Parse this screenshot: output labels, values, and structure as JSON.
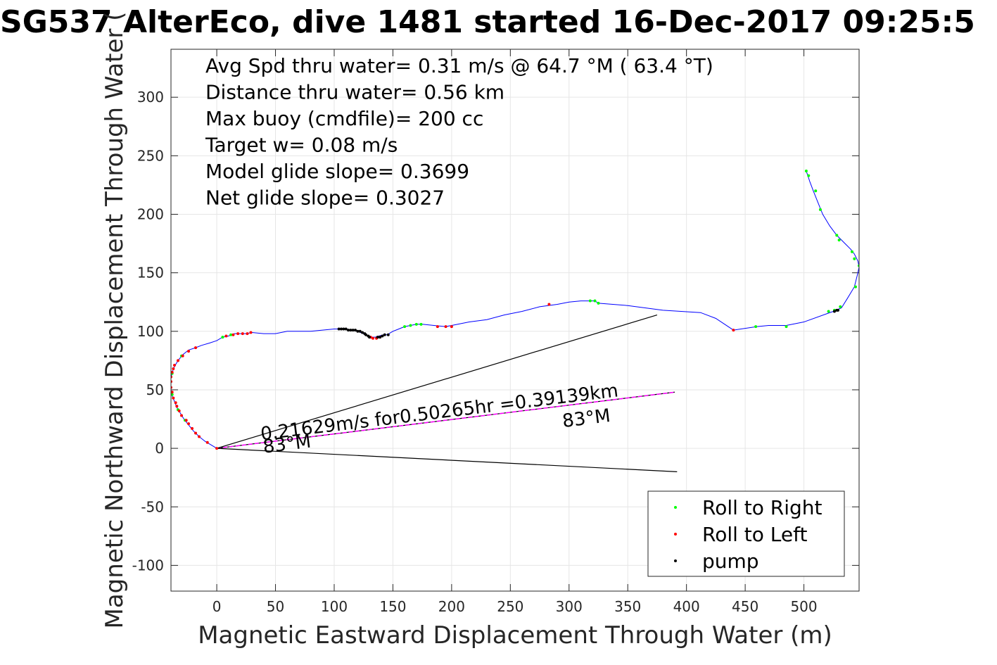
{
  "chart_data": {
    "type": "scatter",
    "title": "SG537 AlterEco, dive 1481 started 16-Dec-2017 09:25:5",
    "xlabel": "Magnetic Eastward Displacement Through Water (m)",
    "ylabel": "Magnetic Northward Displacement Through Water (",
    "xlim": [
      -39,
      547
    ],
    "ylim": [
      -122,
      341
    ],
    "xticks": [
      0,
      50,
      100,
      150,
      200,
      250,
      300,
      350,
      400,
      450,
      500
    ],
    "yticks": [
      -100,
      -50,
      0,
      50,
      100,
      150,
      200,
      250,
      300
    ],
    "grid": true,
    "legend_position": "bottom-right",
    "annotation_lines": [
      "Avg Spd thru water=  0.31 m/s @  64.7 °M ( 63.4 °T)",
      "Distance thru water=  0.56 km",
      "Max buoy (cmdfile)= 200 cc",
      "Target w= 0.08 m/s",
      "Model glide slope= 0.3699",
      "Net glide slope= 0.3027"
    ],
    "current_label": "0.21629m/s for0.50265hr =0.39139km",
    "heading_labels": [
      {
        "text": "83°M",
        "x": 40,
        "y": -4
      },
      {
        "text": "83°M",
        "x": 295,
        "y": 18
      }
    ],
    "series": [
      {
        "name": "track",
        "style": "line",
        "color": "#0000ff",
        "points": [
          [
            0,
            0
          ],
          [
            -5,
            3
          ],
          [
            -10,
            6
          ],
          [
            -15,
            10
          ],
          [
            -20,
            15
          ],
          [
            -24,
            20
          ],
          [
            -28,
            25
          ],
          [
            -31,
            30
          ],
          [
            -34,
            35
          ],
          [
            -36,
            40
          ],
          [
            -38,
            45
          ],
          [
            -39,
            50
          ],
          [
            -39,
            55
          ],
          [
            -39,
            60
          ],
          [
            -38,
            65
          ],
          [
            -36,
            70
          ],
          [
            -33,
            75
          ],
          [
            -29,
            80
          ],
          [
            -24,
            84
          ],
          [
            -18,
            86
          ],
          [
            -13,
            88
          ],
          [
            -6,
            90
          ],
          [
            0,
            92
          ],
          [
            5,
            95
          ],
          [
            10,
            96
          ],
          [
            15,
            98
          ],
          [
            20,
            98
          ],
          [
            25,
            98
          ],
          [
            30,
            99
          ],
          [
            40,
            98
          ],
          [
            50,
            98
          ],
          [
            60,
            100
          ],
          [
            70,
            100
          ],
          [
            80,
            100
          ],
          [
            90,
            101
          ],
          [
            100,
            102
          ],
          [
            110,
            102
          ],
          [
            120,
            100
          ],
          [
            127,
            97
          ],
          [
            131,
            95
          ],
          [
            135,
            95
          ],
          [
            138,
            96
          ],
          [
            142,
            97
          ],
          [
            145,
            97
          ],
          [
            150,
            100
          ],
          [
            155,
            102
          ],
          [
            160,
            104
          ],
          [
            165,
            105
          ],
          [
            170,
            106
          ],
          [
            175,
            106
          ],
          [
            185,
            105
          ],
          [
            195,
            104
          ],
          [
            200,
            105
          ],
          [
            215,
            108
          ],
          [
            230,
            110
          ],
          [
            245,
            114
          ],
          [
            260,
            117
          ],
          [
            275,
            121
          ],
          [
            290,
            123
          ],
          [
            300,
            125
          ],
          [
            310,
            126
          ],
          [
            318,
            126
          ],
          [
            322,
            126
          ],
          [
            325,
            124
          ],
          [
            350,
            122
          ],
          [
            380,
            118
          ],
          [
            412,
            116
          ],
          [
            425,
            111
          ],
          [
            440,
            101
          ],
          [
            460,
            104
          ],
          [
            470,
            105
          ],
          [
            485,
            105
          ],
          [
            500,
            108
          ],
          [
            525,
            117
          ],
          [
            532,
            120
          ],
          [
            537,
            128
          ],
          [
            543,
            138
          ],
          [
            546,
            150
          ],
          [
            547,
            155
          ],
          [
            546,
            160
          ],
          [
            543,
            166
          ],
          [
            540,
            170
          ],
          [
            535,
            175
          ],
          [
            528,
            182
          ],
          [
            522,
            190
          ],
          [
            516,
            200
          ],
          [
            512,
            210
          ],
          [
            508,
            220
          ],
          [
            505,
            228
          ],
          [
            502,
            237
          ]
        ]
      },
      {
        "name": "Roll to Right",
        "style": "marker",
        "color": "#00ff00",
        "points": [
          [
            -27,
            24
          ],
          [
            -33,
            33
          ],
          [
            -38,
            46
          ],
          [
            -38,
            64
          ],
          [
            -30,
            79
          ],
          [
            5,
            95
          ],
          [
            12,
            97
          ],
          [
            160,
            104
          ],
          [
            165,
            105
          ],
          [
            170,
            106
          ],
          [
            174,
            106
          ],
          [
            318,
            126
          ],
          [
            322,
            126
          ],
          [
            325,
            124
          ],
          [
            459,
            104
          ],
          [
            485,
            104
          ],
          [
            502,
            237
          ],
          [
            504,
            233
          ],
          [
            510,
            220
          ],
          [
            514,
            204
          ],
          [
            528,
            182
          ],
          [
            530,
            178
          ],
          [
            541,
            168
          ],
          [
            543,
            162
          ],
          [
            547,
            156
          ],
          [
            544,
            138
          ],
          [
            531,
            121
          ],
          [
            521,
            117
          ],
          [
            526,
            118
          ]
        ]
      },
      {
        "name": "Roll to Left",
        "style": "marker",
        "color": "#ff0000",
        "points": [
          [
            0,
            0
          ],
          [
            -8,
            5
          ],
          [
            -15,
            10
          ],
          [
            -18,
            13
          ],
          [
            -21,
            17
          ],
          [
            -24,
            21
          ],
          [
            -26,
            24
          ],
          [
            -30,
            28
          ],
          [
            -32,
            32
          ],
          [
            -34,
            36
          ],
          [
            -35,
            39
          ],
          [
            -37,
            43
          ],
          [
            -38,
            48
          ],
          [
            -39,
            52
          ],
          [
            -39,
            57
          ],
          [
            -39,
            61
          ],
          [
            -38,
            65
          ],
          [
            -37,
            68
          ],
          [
            -36,
            71
          ],
          [
            -33,
            75
          ],
          [
            -29,
            79
          ],
          [
            -24,
            83
          ],
          [
            -18,
            86
          ],
          [
            8,
            96
          ],
          [
            14,
            97
          ],
          [
            18,
            98
          ],
          [
            22,
            98
          ],
          [
            26,
            98
          ],
          [
            29,
            99
          ],
          [
            131,
            95
          ],
          [
            133,
            94
          ],
          [
            136,
            94
          ],
          [
            139,
            95
          ],
          [
            188,
            104
          ],
          [
            195,
            104
          ],
          [
            200,
            104
          ],
          [
            283,
            123
          ],
          [
            440,
            101
          ]
        ]
      },
      {
        "name": "pump",
        "style": "marker",
        "color": "#000000",
        "points": [
          [
            104,
            102
          ],
          [
            106,
            102
          ],
          [
            108,
            102
          ],
          [
            110,
            102
          ],
          [
            112,
            101
          ],
          [
            114,
            101
          ],
          [
            116,
            101
          ],
          [
            118,
            101
          ],
          [
            120,
            100
          ],
          [
            122,
            100
          ],
          [
            124,
            99
          ],
          [
            126,
            98
          ],
          [
            127,
            97
          ],
          [
            129,
            96
          ],
          [
            130,
            95
          ],
          [
            137,
            95
          ],
          [
            139,
            95
          ],
          [
            141,
            96
          ],
          [
            143,
            97
          ],
          [
            146,
            97
          ],
          [
            526,
            117
          ],
          [
            528,
            118
          ],
          [
            529,
            118
          ]
        ]
      }
    ],
    "reference_lines": [
      {
        "name": "current",
        "color": "#000000",
        "from": [
          0,
          0
        ],
        "to": [
          390,
          48
        ]
      },
      {
        "name": "current-heading",
        "color": "#ff00ff",
        "from": [
          0,
          0
        ],
        "to": [
          390,
          48
        ]
      },
      {
        "name": "bound-upper",
        "color": "#000000",
        "from": [
          0,
          0
        ],
        "to": [
          375,
          114
        ]
      },
      {
        "name": "bound-lower",
        "color": "#000000",
        "from": [
          0,
          0
        ],
        "to": [
          392,
          -20
        ]
      }
    ],
    "legend": [
      {
        "label": "Roll to Right",
        "color": "#00ff00"
      },
      {
        "label": "Roll to Left",
        "color": "#ff0000"
      },
      {
        "label": "pump",
        "color": "#000000"
      }
    ]
  }
}
